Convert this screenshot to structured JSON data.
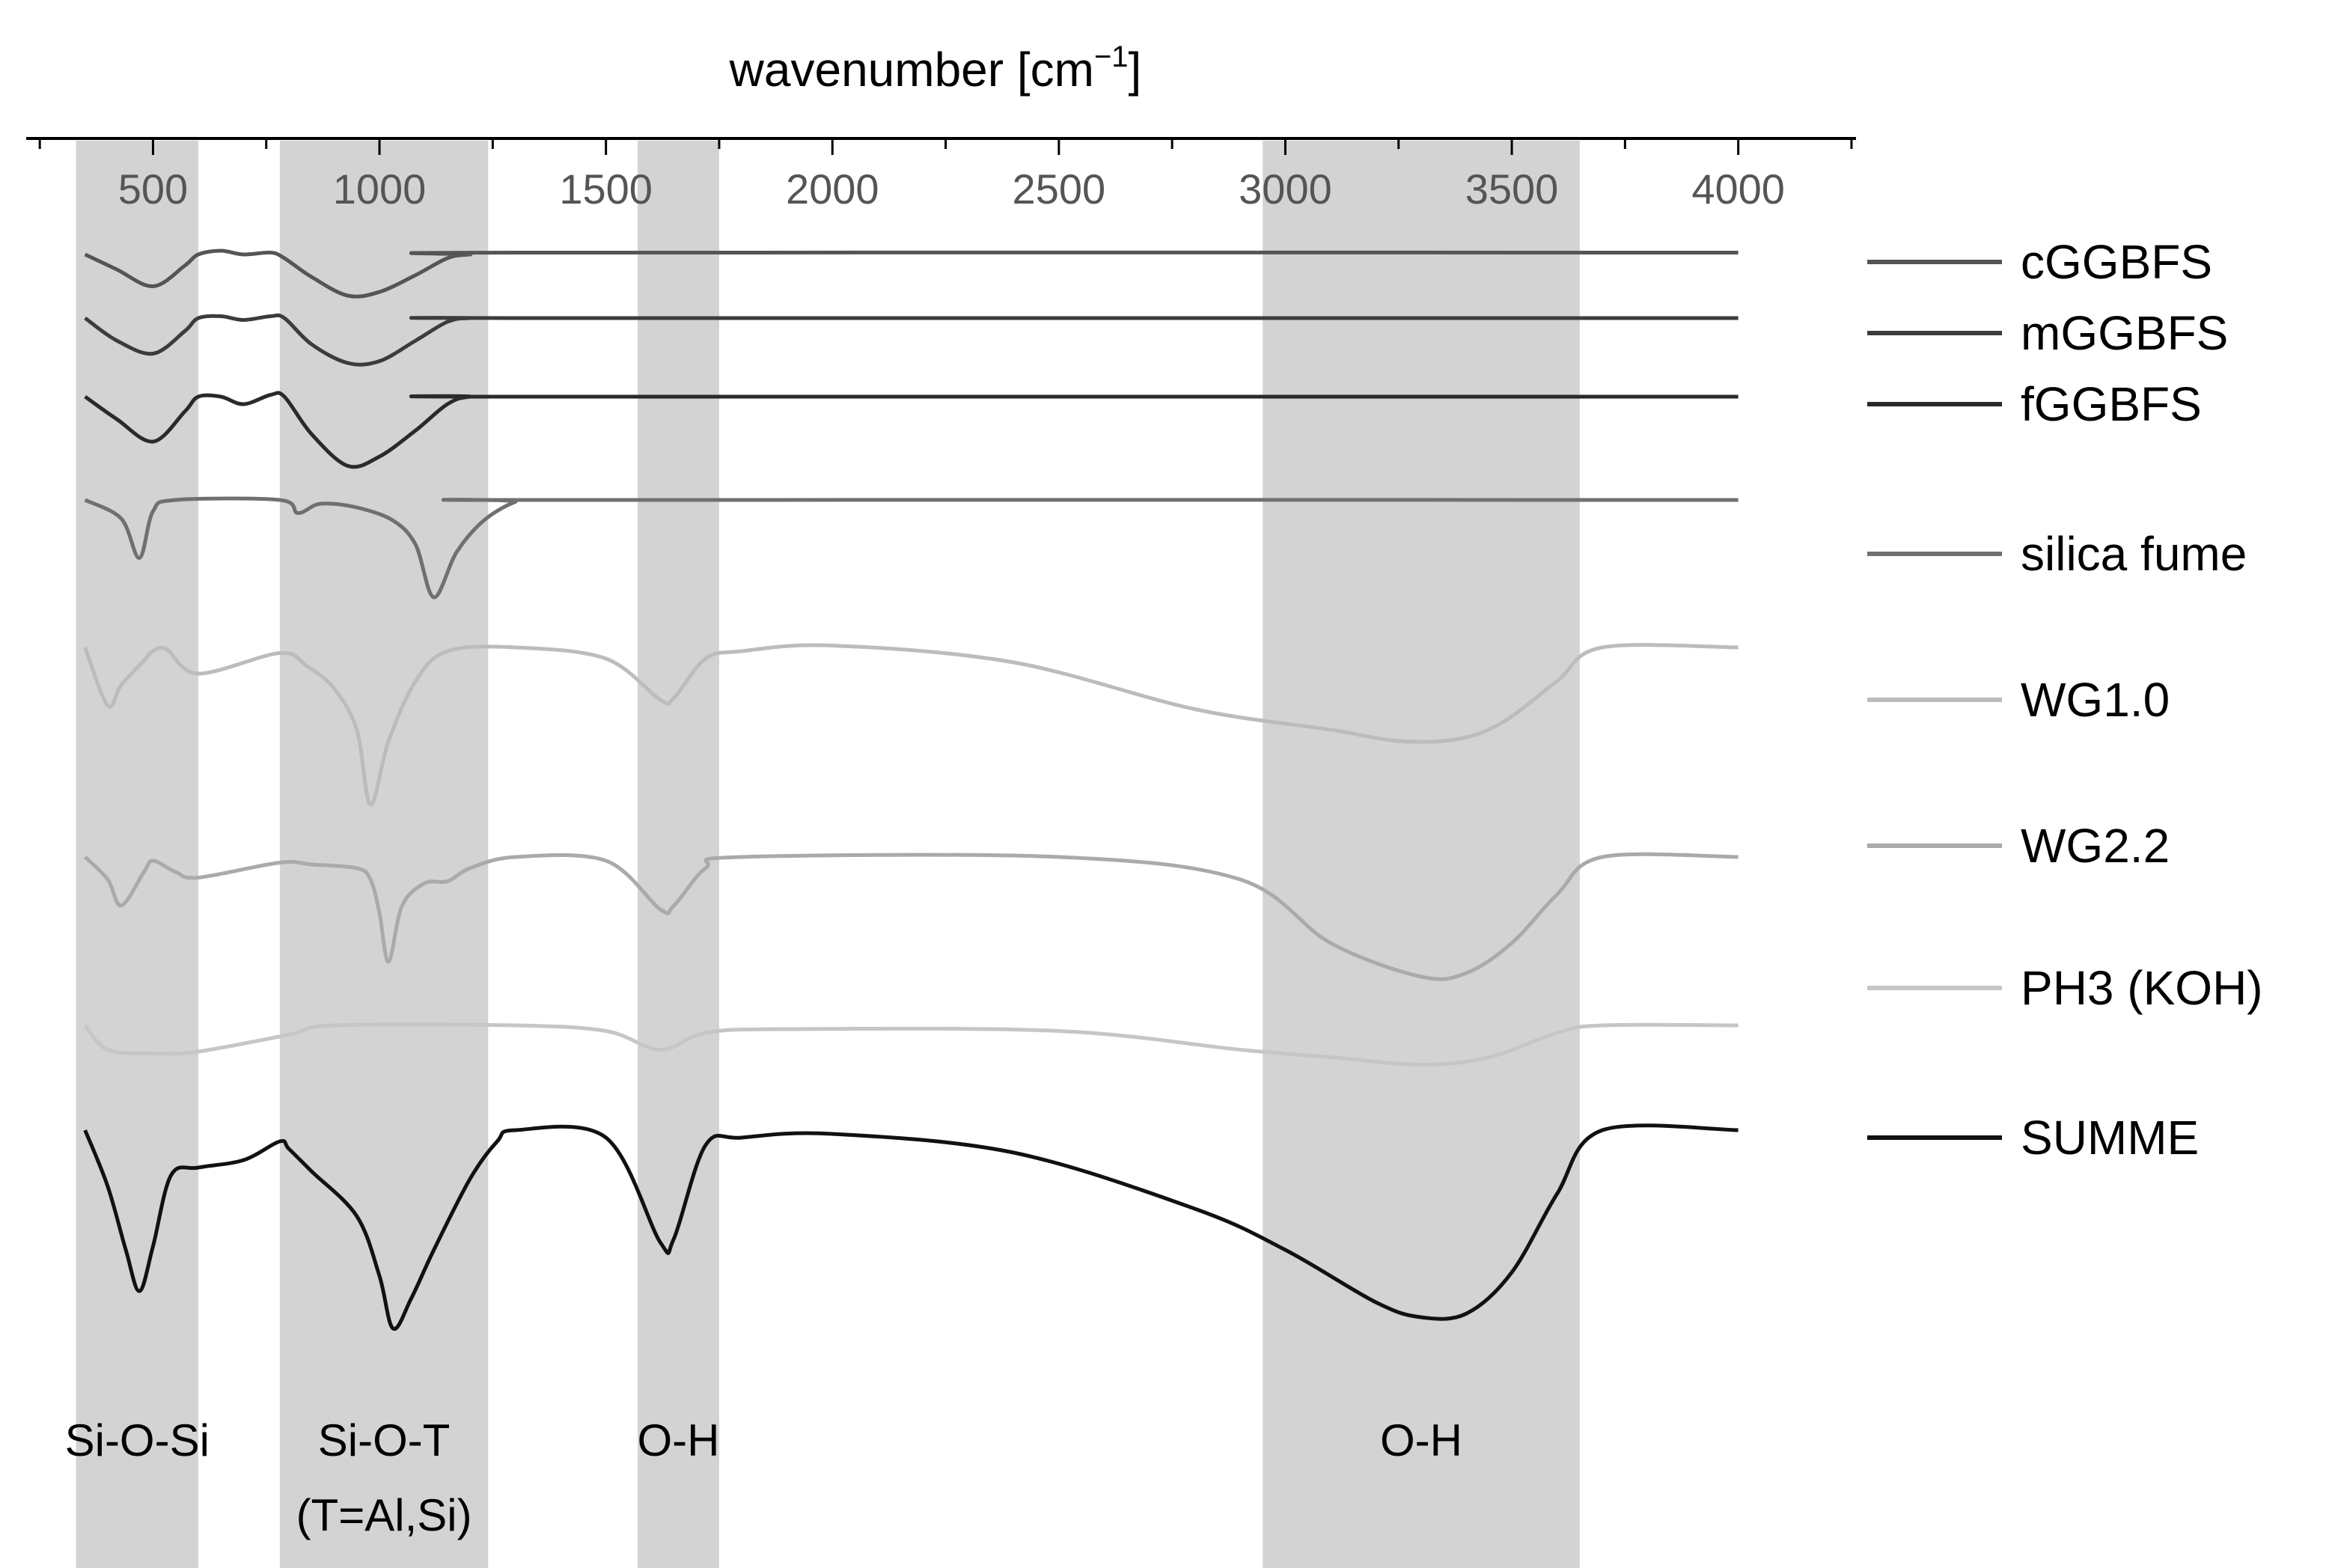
{
  "chart_data": {
    "type": "line",
    "title": "",
    "xlabel": "wavenumber [cm",
    "xlabel_sup": "−1",
    "xlabel_end": "]",
    "ylabel": "",
    "xlim": [
      220,
      4260
    ],
    "xticks": [
      500,
      1000,
      1500,
      2000,
      2500,
      3000,
      3500,
      4000
    ],
    "xtick_labels": [
      "500",
      "1000",
      "1500",
      "2000",
      "2500",
      "3000",
      "3500",
      "4000"
    ],
    "x_axis_position": "top",
    "grid": false,
    "legend_position": "right",
    "shaded_bands": [
      {
        "range": [
          330,
          600
        ],
        "label": "Si-O-Si",
        "label2": ""
      },
      {
        "range": [
          780,
          1240
        ],
        "label": "Si-O-T",
        "label2": "(T=Al,Si)"
      },
      {
        "range": [
          1570,
          1750
        ],
        "label": "O-H",
        "label2": ""
      },
      {
        "range": [
          2950,
          3650
        ],
        "label": "O-H",
        "label2": ""
      }
    ],
    "series": [
      {
        "name": "cGGBFS",
        "color": "#555555",
        "points": [
          [
            350,
            0
          ],
          [
            420,
            -0.4
          ],
          [
            500,
            -0.85
          ],
          [
            570,
            -0.3
          ],
          [
            600,
            0
          ],
          [
            650,
            0.1
          ],
          [
            700,
            0
          ],
          [
            760,
            0.05
          ],
          [
            790,
            -0.1
          ],
          [
            850,
            -0.6
          ],
          [
            930,
            -1.1
          ],
          [
            1000,
            -1.0
          ],
          [
            1080,
            -0.55
          ],
          [
            1150,
            -0.1
          ],
          [
            1200,
            0
          ],
          [
            1300,
            0.05
          ],
          [
            4000,
            0.05
          ]
        ]
      },
      {
        "name": "mGGBFS",
        "color": "#3c3c3c",
        "points": [
          [
            350,
            0
          ],
          [
            420,
            -0.6
          ],
          [
            500,
            -0.95
          ],
          [
            570,
            -0.35
          ],
          [
            600,
            0
          ],
          [
            650,
            0.05
          ],
          [
            700,
            -0.05
          ],
          [
            760,
            0.05
          ],
          [
            790,
            0
          ],
          [
            850,
            -0.7
          ],
          [
            930,
            -1.2
          ],
          [
            1000,
            -1.15
          ],
          [
            1080,
            -0.6
          ],
          [
            1150,
            -0.1
          ],
          [
            1200,
            0
          ],
          [
            1300,
            0
          ],
          [
            4000,
            0
          ]
        ]
      },
      {
        "name": "fGGBFS",
        "color": "#2a2a2a",
        "points": [
          [
            350,
            0
          ],
          [
            420,
            -0.6
          ],
          [
            500,
            -1.2
          ],
          [
            570,
            -0.4
          ],
          [
            600,
            0
          ],
          [
            650,
            0
          ],
          [
            700,
            -0.2
          ],
          [
            760,
            0.05
          ],
          [
            790,
            0
          ],
          [
            850,
            -1.0
          ],
          [
            930,
            -1.85
          ],
          [
            1000,
            -1.6
          ],
          [
            1080,
            -0.9
          ],
          [
            1150,
            -0.2
          ],
          [
            1200,
            0
          ],
          [
            1300,
            0
          ],
          [
            4000,
            0
          ]
        ]
      },
      {
        "name": "silica fume",
        "color": "#707070",
        "points": [
          [
            350,
            0
          ],
          [
            430,
            -0.5
          ],
          [
            470,
            -1.55
          ],
          [
            500,
            -0.3
          ],
          [
            550,
            0
          ],
          [
            780,
            0
          ],
          [
            820,
            -0.35
          ],
          [
            870,
            -0.1
          ],
          [
            950,
            -0.2
          ],
          [
            1030,
            -0.55
          ],
          [
            1080,
            -1.2
          ],
          [
            1120,
            -2.6
          ],
          [
            1170,
            -1.4
          ],
          [
            1230,
            -0.55
          ],
          [
            1300,
            -0.05
          ],
          [
            1350,
            0
          ],
          [
            4000,
            0
          ]
        ]
      },
      {
        "name": "WG1.0",
        "color": "#bcbcbc",
        "points": [
          [
            350,
            0
          ],
          [
            400,
            -1.55
          ],
          [
            430,
            -1.0
          ],
          [
            480,
            -0.35
          ],
          [
            500,
            -0.1
          ],
          [
            530,
            -0.05
          ],
          [
            600,
            -0.7
          ],
          [
            780,
            -0.15
          ],
          [
            840,
            -0.5
          ],
          [
            900,
            -1.1
          ],
          [
            950,
            -2.2
          ],
          [
            980,
            -4.2
          ],
          [
            1020,
            -2.5
          ],
          [
            1080,
            -0.9
          ],
          [
            1150,
            -0.1
          ],
          [
            1300,
            0
          ],
          [
            1500,
            -0.3
          ],
          [
            1620,
            -1.4
          ],
          [
            1650,
            -1.35
          ],
          [
            1720,
            -0.3
          ],
          [
            1800,
            -0.1
          ],
          [
            2000,
            0.05
          ],
          [
            2400,
            -0.4
          ],
          [
            2800,
            -1.65
          ],
          [
            3100,
            -2.2
          ],
          [
            3250,
            -2.5
          ],
          [
            3380,
            -2.45
          ],
          [
            3480,
            -2.0
          ],
          [
            3600,
            -0.9
          ],
          [
            3700,
            0
          ],
          [
            4000,
            0
          ]
        ]
      },
      {
        "name": "WG2.2",
        "color": "#aaaaaa",
        "points": [
          [
            350,
            0
          ],
          [
            400,
            -0.6
          ],
          [
            430,
            -1.3
          ],
          [
            480,
            -0.4
          ],
          [
            500,
            -0.1
          ],
          [
            550,
            -0.4
          ],
          [
            600,
            -0.55
          ],
          [
            780,
            -0.15
          ],
          [
            850,
            -0.2
          ],
          [
            950,
            -0.3
          ],
          [
            980,
            -0.6
          ],
          [
            1000,
            -1.5
          ],
          [
            1020,
            -2.8
          ],
          [
            1050,
            -1.3
          ],
          [
            1100,
            -0.7
          ],
          [
            1150,
            -0.65
          ],
          [
            1200,
            -0.3
          ],
          [
            1300,
            0
          ],
          [
            1500,
            -0.1
          ],
          [
            1620,
            -1.4
          ],
          [
            1650,
            -1.3
          ],
          [
            1720,
            -0.3
          ],
          [
            1800,
            0
          ],
          [
            2500,
            0
          ],
          [
            2900,
            -0.6
          ],
          [
            3100,
            -2.3
          ],
          [
            3300,
            -3.2
          ],
          [
            3400,
            -3.1
          ],
          [
            3500,
            -2.3
          ],
          [
            3600,
            -1.0
          ],
          [
            3700,
            0
          ],
          [
            4000,
            0
          ]
        ]
      },
      {
        "name": "PH3 (KOH)",
        "color": "#c6c6c6",
        "points": [
          [
            350,
            0
          ],
          [
            400,
            -0.65
          ],
          [
            500,
            -0.75
          ],
          [
            600,
            -0.7
          ],
          [
            800,
            -0.25
          ],
          [
            900,
            0
          ],
          [
            1300,
            0
          ],
          [
            1500,
            -0.15
          ],
          [
            1620,
            -0.65
          ],
          [
            1720,
            -0.2
          ],
          [
            1900,
            -0.1
          ],
          [
            2500,
            -0.15
          ],
          [
            2900,
            -0.65
          ],
          [
            3100,
            -0.85
          ],
          [
            3300,
            -1.05
          ],
          [
            3450,
            -0.85
          ],
          [
            3600,
            -0.2
          ],
          [
            3700,
            0
          ],
          [
            4000,
            0
          ]
        ]
      },
      {
        "name": "SUMME",
        "color": "#111111",
        "points": [
          [
            350,
            0
          ],
          [
            400,
            -1.5
          ],
          [
            440,
            -3.2
          ],
          [
            470,
            -4.3
          ],
          [
            500,
            -3.1
          ],
          [
            540,
            -1.2
          ],
          [
            600,
            -1.0
          ],
          [
            700,
            -0.8
          ],
          [
            780,
            -0.3
          ],
          [
            800,
            -0.5
          ],
          [
            850,
            -1.1
          ],
          [
            950,
            -2.3
          ],
          [
            1000,
            -3.9
          ],
          [
            1030,
            -5.3
          ],
          [
            1070,
            -4.5
          ],
          [
            1120,
            -3.2
          ],
          [
            1200,
            -1.3
          ],
          [
            1260,
            -0.3
          ],
          [
            1300,
            0
          ],
          [
            1500,
            -0.2
          ],
          [
            1620,
            -3.0
          ],
          [
            1650,
            -2.9
          ],
          [
            1720,
            -0.4
          ],
          [
            1800,
            -0.2
          ],
          [
            2000,
            -0.1
          ],
          [
            2400,
            -0.6
          ],
          [
            2800,
            -2.1
          ],
          [
            3000,
            -3.2
          ],
          [
            3200,
            -4.6
          ],
          [
            3300,
            -5.0
          ],
          [
            3400,
            -4.9
          ],
          [
            3500,
            -3.8
          ],
          [
            3600,
            -1.7
          ],
          [
            3700,
            0
          ],
          [
            4000,
            0
          ]
        ]
      }
    ]
  }
}
